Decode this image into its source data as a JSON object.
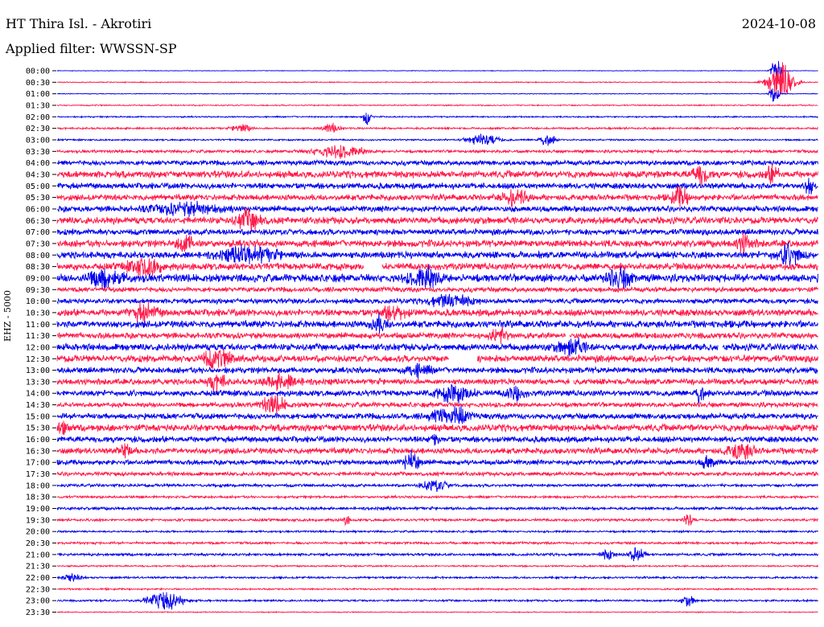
{
  "header": {
    "station": "HT Thira Isl. - Akrotiri",
    "date": "2024-10-08",
    "filter": "Applied filter: WWSSN-SP"
  },
  "channel_label": "EHZ - 5000",
  "colors": {
    "even_row": "#0000ee",
    "odd_row": "#ff1a4a",
    "background": "#ffffff"
  },
  "chart_data": {
    "type": "helicorder",
    "title": "HT Thira Isl. - Akrotiri",
    "subtitle": "Applied filter: WWSSN-SP",
    "date": "2024-10-08",
    "ylabel": "EHZ - 5000",
    "grid": false,
    "row_times": [
      "00:00",
      "00:30",
      "01:00",
      "01:30",
      "02:00",
      "02:30",
      "03:00",
      "03:30",
      "04:00",
      "04:30",
      "05:00",
      "05:30",
      "06:00",
      "06:30",
      "07:00",
      "07:30",
      "08:00",
      "08:30",
      "09:00",
      "09:30",
      "10:00",
      "10:30",
      "11:00",
      "11:30",
      "12:00",
      "12:30",
      "13:00",
      "13:30",
      "14:00",
      "14:30",
      "15:00",
      "15:30",
      "16:00",
      "16:30",
      "17:00",
      "17:30",
      "18:00",
      "18:30",
      "19:00",
      "19:30",
      "20:00",
      "20:30",
      "21:00",
      "21:30",
      "22:00",
      "22:30",
      "23:00",
      "23:30"
    ],
    "noise_level": [
      0.3,
      0.5,
      0.4,
      0.6,
      0.7,
      1.0,
      0.8,
      1.5,
      2.5,
      3.5,
      3.0,
      3.0,
      3.0,
      3.5,
      3.0,
      3.5,
      3.5,
      3.5,
      4.0,
      2.5,
      2.5,
      3.5,
      3.5,
      3.0,
      3.5,
      3.5,
      3.0,
      3.0,
      3.0,
      2.5,
      3.0,
      3.5,
      3.0,
      3.0,
      2.5,
      2.0,
      1.5,
      1.2,
      1.5,
      1.3,
      1.0,
      1.2,
      1.3,
      0.8,
      1.0,
      0.8,
      1.0,
      0.5
    ]
  }
}
